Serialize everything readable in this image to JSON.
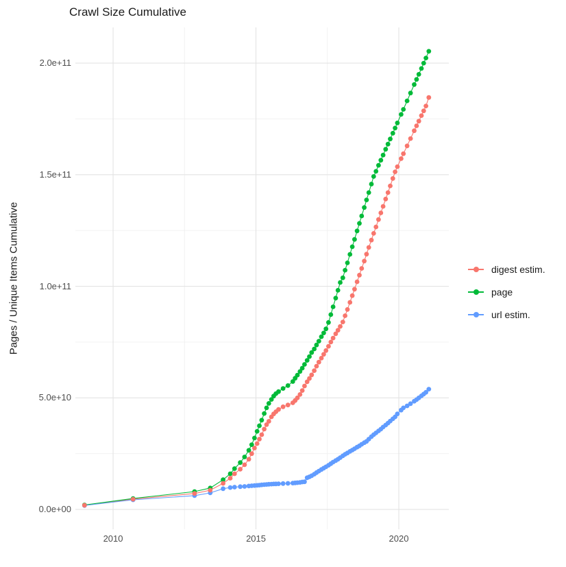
{
  "title": "Crawl Size Cumulative",
  "y_axis": {
    "title": "Pages / Unique Items Cumulative",
    "tick_labels": [
      "0.0e+00",
      "5.0e+10",
      "1.0e+11",
      "1.5e+11",
      "2.0e+11"
    ]
  },
  "x_axis": {
    "tick_labels": [
      "2010",
      "2015",
      "2020"
    ]
  },
  "legend": {
    "items": [
      {
        "label": "digest estim.",
        "color": "#F8766D"
      },
      {
        "label": "page",
        "color": "#00BA38"
      },
      {
        "label": "url estim.",
        "color": "#619CFF"
      }
    ]
  },
  "chart_data": {
    "type": "scatter",
    "title": "Crawl Size Cumulative",
    "ylabel": "Pages / Unique Items Cumulative",
    "xlabel": "",
    "grid": true,
    "legend_position": "right",
    "value_unit": "pages (values in billions, 1e9)",
    "xlim": [
      2008.68,
      2021.75
    ],
    "ylim": [
      -8.9,
      216
    ],
    "x_ticks": [
      {
        "v": 2010,
        "label": "2010"
      },
      {
        "v": 2015,
        "label": "2015"
      },
      {
        "v": 2020,
        "label": "2020"
      }
    ],
    "x_minor": [
      2012.5,
      2017.5
    ],
    "y_ticks": [
      {
        "v": 0,
        "label": "0.0e+00"
      },
      {
        "v": 50,
        "label": "5.0e+10"
      },
      {
        "v": 100,
        "label": "1.0e+11"
      },
      {
        "v": 150,
        "label": "1.5e+11"
      },
      {
        "v": 200,
        "label": "2.0e+11"
      }
    ],
    "y_minor": [
      25,
      75,
      125,
      175
    ],
    "x": [
      2009.0,
      2010.7,
      2012.85,
      2013.4,
      2013.85,
      2014.1,
      2014.25,
      2014.45,
      2014.6,
      2014.75,
      2014.85,
      2014.95,
      2015.04,
      2015.12,
      2015.2,
      2015.29,
      2015.37,
      2015.45,
      2015.54,
      2015.62,
      2015.7,
      2015.79,
      2015.95,
      2016.12,
      2016.29,
      2016.37,
      2016.45,
      2016.54,
      2016.62,
      2016.7,
      2016.79,
      2016.87,
      2016.95,
      2017.04,
      2017.12,
      2017.2,
      2017.29,
      2017.37,
      2017.45,
      2017.54,
      2017.62,
      2017.7,
      2017.79,
      2017.87,
      2017.95,
      2018.04,
      2018.12,
      2018.2,
      2018.29,
      2018.37,
      2018.45,
      2018.54,
      2018.62,
      2018.7,
      2018.79,
      2018.87,
      2018.95,
      2019.04,
      2019.12,
      2019.2,
      2019.29,
      2019.37,
      2019.45,
      2019.54,
      2019.62,
      2019.7,
      2019.79,
      2019.87,
      2019.95,
      2020.08,
      2020.16,
      2020.29,
      2020.41,
      2020.54,
      2020.62,
      2020.7,
      2020.79,
      2020.87,
      2020.95,
      2021.05
    ],
    "series": [
      {
        "name": "digest estim.",
        "color": "#F8766D",
        "values": [
          1.85,
          4.6,
          7.15,
          8.6,
          11.7,
          14,
          16,
          18,
          20,
          22.5,
          25,
          27.5,
          29.5,
          31.5,
          33.5,
          36,
          38,
          39.5,
          41.5,
          42.8,
          43.8,
          44.8,
          46,
          46.8,
          47.8,
          48.8,
          50,
          51.5,
          53.3,
          55.3,
          57.2,
          58.7,
          60.3,
          62.2,
          64.2,
          66,
          67.8,
          69.5,
          71.2,
          73.1,
          75,
          76.8,
          78.7,
          80.3,
          82,
          84,
          86.8,
          89.6,
          92.8,
          95.8,
          98.7,
          102,
          105,
          108,
          111.3,
          114.4,
          117.4,
          120.7,
          123.7,
          126.6,
          129.9,
          132.9,
          135.8,
          139.1,
          142,
          145,
          148.3,
          151.3,
          153.6,
          157.2,
          159.4,
          162.9,
          166.2,
          169.7,
          171.9,
          174,
          176.5,
          178.6,
          180.8,
          184.6
        ]
      },
      {
        "name": "page",
        "color": "#00BA38",
        "values": [
          2,
          4.9,
          8,
          9.6,
          13.3,
          16,
          18.3,
          21,
          23.5,
          26.5,
          29,
          32,
          35,
          37.5,
          40,
          43,
          45.5,
          47.5,
          49.3,
          50.8,
          51.9,
          52.8,
          54.2,
          55.5,
          57.3,
          58.8,
          60.2,
          61.8,
          63.3,
          65,
          66.8,
          68.5,
          70.3,
          71.9,
          73.7,
          75.4,
          77.4,
          79.1,
          80.9,
          83.8,
          87.3,
          90.8,
          94.7,
          98.2,
          101.7,
          103.8,
          107.2,
          110.5,
          114.3,
          117.7,
          121,
          124.8,
          128.2,
          131.5,
          135.3,
          138.7,
          142,
          145.8,
          149.2,
          151.5,
          154.2,
          156.5,
          158.8,
          161.4,
          163.7,
          166,
          168.6,
          170.9,
          173.2,
          177,
          179.3,
          183.1,
          186.6,
          190.4,
          192.7,
          195,
          197.6,
          200,
          202.3,
          205.3
        ]
      },
      {
        "name": "url estim.",
        "color": "#619CFF",
        "values": [
          1.75,
          4.3,
          6.2,
          7.4,
          9.3,
          9.8,
          10,
          10.2,
          10.3,
          10.5,
          10.6,
          10.7,
          10.8,
          10.9,
          11,
          11.1,
          11.2,
          11.3,
          11.35,
          11.4,
          11.45,
          11.5,
          11.6,
          11.7,
          11.8,
          11.9,
          12,
          12.1,
          12.3,
          12.4,
          14.2,
          14.6,
          15.1,
          15.8,
          16.5,
          17.2,
          17.9,
          18.5,
          19.1,
          19.8,
          20.5,
          21.2,
          21.9,
          22.5,
          23.2,
          24,
          24.7,
          25.3,
          26,
          26.6,
          27.2,
          27.9,
          28.5,
          29.2,
          29.9,
          30.5,
          31.5,
          32.6,
          33.5,
          34.3,
          35.2,
          36,
          36.9,
          37.8,
          38.7,
          39.6,
          40.6,
          41.5,
          42.8,
          44.5,
          45.5,
          46.4,
          47.4,
          48.5,
          49.2,
          50,
          50.9,
          51.7,
          52.5,
          53.9
        ]
      }
    ]
  }
}
